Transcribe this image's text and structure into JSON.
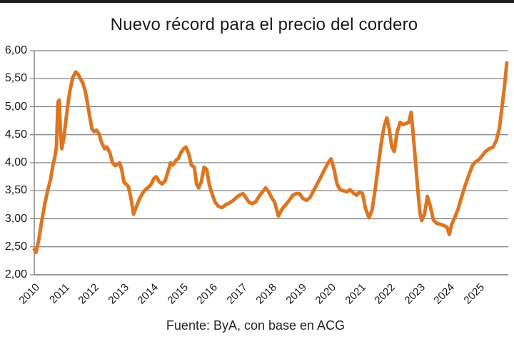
{
  "header": {
    "title": "Nuevo récord para el precio del cordero"
  },
  "footer": {
    "source": "Fuente: ByA, con base en ACG"
  },
  "colors": {
    "line": "#DD7622",
    "grid": "#808080",
    "axis": "#808080",
    "title_text": "#1A1A1A",
    "top_rule": "#1C1C1C"
  },
  "chart_data": {
    "type": "line",
    "title": "Nuevo récord para el precio del cordero",
    "source_note": "Fuente: ByA, con base en ACG",
    "xlabel": "",
    "ylabel": "",
    "xlim": [
      2010,
      2026
    ],
    "ylim": [
      2.0,
      6.0
    ],
    "grid": "horizontal",
    "legend": "none",
    "x_tick_labels": [
      "2010",
      "2011",
      "2012",
      "2013",
      "2014",
      "2015",
      "2016",
      "2017",
      "2018",
      "2019",
      "2020",
      "2021",
      "2022",
      "2023",
      "2024",
      "2025"
    ],
    "x_tick_values": [
      2010,
      2011,
      2012,
      2013,
      2014,
      2015,
      2016,
      2017,
      2018,
      2019,
      2020,
      2021,
      2022,
      2023,
      2024,
      2025
    ],
    "y_tick_labels": [
      "2,00",
      "2,50",
      "3,00",
      "3,50",
      "4,00",
      "4,50",
      "5,00",
      "5,50",
      "6,00"
    ],
    "y_tick_values": [
      2.0,
      2.5,
      3.0,
      3.5,
      4.0,
      4.5,
      5.0,
      5.5,
      6.0
    ],
    "series": [
      {
        "color": "#DD7622",
        "stroke_width": 5,
        "points": [
          [
            2010.0,
            2.45
          ],
          [
            2010.06,
            2.4
          ],
          [
            2010.15,
            2.62
          ],
          [
            2010.25,
            2.95
          ],
          [
            2010.35,
            3.25
          ],
          [
            2010.45,
            3.5
          ],
          [
            2010.55,
            3.7
          ],
          [
            2010.63,
            3.95
          ],
          [
            2010.7,
            4.12
          ],
          [
            2010.75,
            4.3
          ],
          [
            2010.8,
            5.08
          ],
          [
            2010.84,
            5.12
          ],
          [
            2010.88,
            4.62
          ],
          [
            2010.93,
            4.25
          ],
          [
            2011.0,
            4.45
          ],
          [
            2011.06,
            4.72
          ],
          [
            2011.13,
            5.02
          ],
          [
            2011.2,
            5.28
          ],
          [
            2011.3,
            5.52
          ],
          [
            2011.4,
            5.62
          ],
          [
            2011.48,
            5.58
          ],
          [
            2011.56,
            5.5
          ],
          [
            2011.64,
            5.42
          ],
          [
            2011.72,
            5.28
          ],
          [
            2011.8,
            5.05
          ],
          [
            2011.88,
            4.8
          ],
          [
            2011.95,
            4.6
          ],
          [
            2012.03,
            4.55
          ],
          [
            2012.1,
            4.58
          ],
          [
            2012.18,
            4.52
          ],
          [
            2012.28,
            4.35
          ],
          [
            2012.37,
            4.25
          ],
          [
            2012.45,
            4.28
          ],
          [
            2012.55,
            4.18
          ],
          [
            2012.64,
            4.0
          ],
          [
            2012.72,
            3.95
          ],
          [
            2012.8,
            3.96
          ],
          [
            2012.88,
            4.0
          ],
          [
            2012.95,
            3.88
          ],
          [
            2013.03,
            3.65
          ],
          [
            2013.1,
            3.62
          ],
          [
            2013.18,
            3.57
          ],
          [
            2013.27,
            3.35
          ],
          [
            2013.35,
            3.08
          ],
          [
            2013.45,
            3.22
          ],
          [
            2013.55,
            3.35
          ],
          [
            2013.65,
            3.45
          ],
          [
            2013.75,
            3.52
          ],
          [
            2013.85,
            3.56
          ],
          [
            2013.95,
            3.62
          ],
          [
            2014.04,
            3.72
          ],
          [
            2014.12,
            3.75
          ],
          [
            2014.22,
            3.66
          ],
          [
            2014.32,
            3.62
          ],
          [
            2014.42,
            3.68
          ],
          [
            2014.52,
            3.85
          ],
          [
            2014.6,
            4.0
          ],
          [
            2014.68,
            3.96
          ],
          [
            2014.78,
            4.04
          ],
          [
            2014.87,
            4.08
          ],
          [
            2014.95,
            4.18
          ],
          [
            2015.04,
            4.25
          ],
          [
            2015.12,
            4.28
          ],
          [
            2015.22,
            4.15
          ],
          [
            2015.3,
            3.96
          ],
          [
            2015.4,
            3.92
          ],
          [
            2015.48,
            3.62
          ],
          [
            2015.55,
            3.55
          ],
          [
            2015.64,
            3.66
          ],
          [
            2015.73,
            3.92
          ],
          [
            2015.82,
            3.88
          ],
          [
            2015.91,
            3.6
          ],
          [
            2016.0,
            3.45
          ],
          [
            2016.1,
            3.3
          ],
          [
            2016.22,
            3.22
          ],
          [
            2016.34,
            3.2
          ],
          [
            2016.46,
            3.25
          ],
          [
            2016.58,
            3.28
          ],
          [
            2016.7,
            3.32
          ],
          [
            2016.82,
            3.38
          ],
          [
            2016.93,
            3.42
          ],
          [
            2017.04,
            3.45
          ],
          [
            2017.14,
            3.38
          ],
          [
            2017.24,
            3.3
          ],
          [
            2017.35,
            3.27
          ],
          [
            2017.47,
            3.3
          ],
          [
            2017.59,
            3.4
          ],
          [
            2017.7,
            3.48
          ],
          [
            2017.81,
            3.55
          ],
          [
            2017.91,
            3.48
          ],
          [
            2018.01,
            3.38
          ],
          [
            2018.11,
            3.3
          ],
          [
            2018.24,
            3.05
          ],
          [
            2018.37,
            3.18
          ],
          [
            2018.49,
            3.25
          ],
          [
            2018.61,
            3.33
          ],
          [
            2018.73,
            3.42
          ],
          [
            2018.84,
            3.45
          ],
          [
            2018.95,
            3.45
          ],
          [
            2019.07,
            3.36
          ],
          [
            2019.19,
            3.33
          ],
          [
            2019.31,
            3.38
          ],
          [
            2019.43,
            3.5
          ],
          [
            2019.55,
            3.62
          ],
          [
            2019.67,
            3.74
          ],
          [
            2019.8,
            3.88
          ],
          [
            2019.92,
            4.0
          ],
          [
            2020.02,
            4.07
          ],
          [
            2020.12,
            3.88
          ],
          [
            2020.22,
            3.62
          ],
          [
            2020.32,
            3.52
          ],
          [
            2020.44,
            3.5
          ],
          [
            2020.55,
            3.48
          ],
          [
            2020.66,
            3.52
          ],
          [
            2020.77,
            3.46
          ],
          [
            2020.88,
            3.42
          ],
          [
            2020.98,
            3.48
          ],
          [
            2021.08,
            3.45
          ],
          [
            2021.18,
            3.18
          ],
          [
            2021.3,
            3.02
          ],
          [
            2021.4,
            3.15
          ],
          [
            2021.5,
            3.5
          ],
          [
            2021.6,
            3.9
          ],
          [
            2021.71,
            4.35
          ],
          [
            2021.81,
            4.65
          ],
          [
            2021.9,
            4.8
          ],
          [
            2021.98,
            4.6
          ],
          [
            2022.07,
            4.28
          ],
          [
            2022.15,
            4.2
          ],
          [
            2022.25,
            4.55
          ],
          [
            2022.35,
            4.72
          ],
          [
            2022.45,
            4.68
          ],
          [
            2022.55,
            4.7
          ],
          [
            2022.64,
            4.72
          ],
          [
            2022.72,
            4.9
          ],
          [
            2022.8,
            4.45
          ],
          [
            2022.88,
            3.95
          ],
          [
            2022.95,
            3.5
          ],
          [
            2023.02,
            3.1
          ],
          [
            2023.08,
            2.97
          ],
          [
            2023.17,
            3.08
          ],
          [
            2023.27,
            3.4
          ],
          [
            2023.37,
            3.22
          ],
          [
            2023.47,
            2.98
          ],
          [
            2023.58,
            2.92
          ],
          [
            2023.7,
            2.9
          ],
          [
            2023.82,
            2.88
          ],
          [
            2023.93,
            2.85
          ],
          [
            2024.01,
            2.72
          ],
          [
            2024.09,
            2.9
          ],
          [
            2024.19,
            3.02
          ],
          [
            2024.31,
            3.18
          ],
          [
            2024.43,
            3.4
          ],
          [
            2024.55,
            3.6
          ],
          [
            2024.67,
            3.78
          ],
          [
            2024.79,
            3.95
          ],
          [
            2024.9,
            4.02
          ],
          [
            2025.0,
            4.05
          ],
          [
            2025.11,
            4.12
          ],
          [
            2025.23,
            4.2
          ],
          [
            2025.36,
            4.25
          ],
          [
            2025.49,
            4.28
          ],
          [
            2025.6,
            4.4
          ],
          [
            2025.7,
            4.62
          ],
          [
            2025.79,
            5.0
          ],
          [
            2025.88,
            5.4
          ],
          [
            2025.95,
            5.78
          ]
        ]
      }
    ]
  }
}
